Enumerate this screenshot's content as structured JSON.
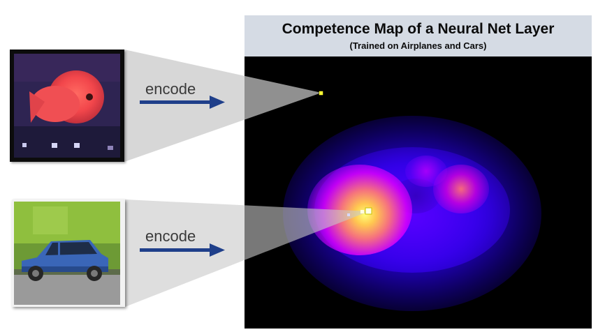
{
  "title": "Competence Map of a Neural Net Layer",
  "subtitle": "(Trained on Airplanes and Cars)",
  "encode_labels": [
    "encode",
    "encode"
  ],
  "colors": {
    "title_bg": "#d5dbe4",
    "arrow": "#1f3f8a",
    "cone": "#c8c8c8",
    "map_bg": "#000000",
    "marker": "#ffff33"
  },
  "inputs": [
    {
      "name": "fish-image",
      "maps_to": "outside-competence-region"
    },
    {
      "name": "car-image",
      "maps_to": "high-competence-region"
    }
  ]
}
